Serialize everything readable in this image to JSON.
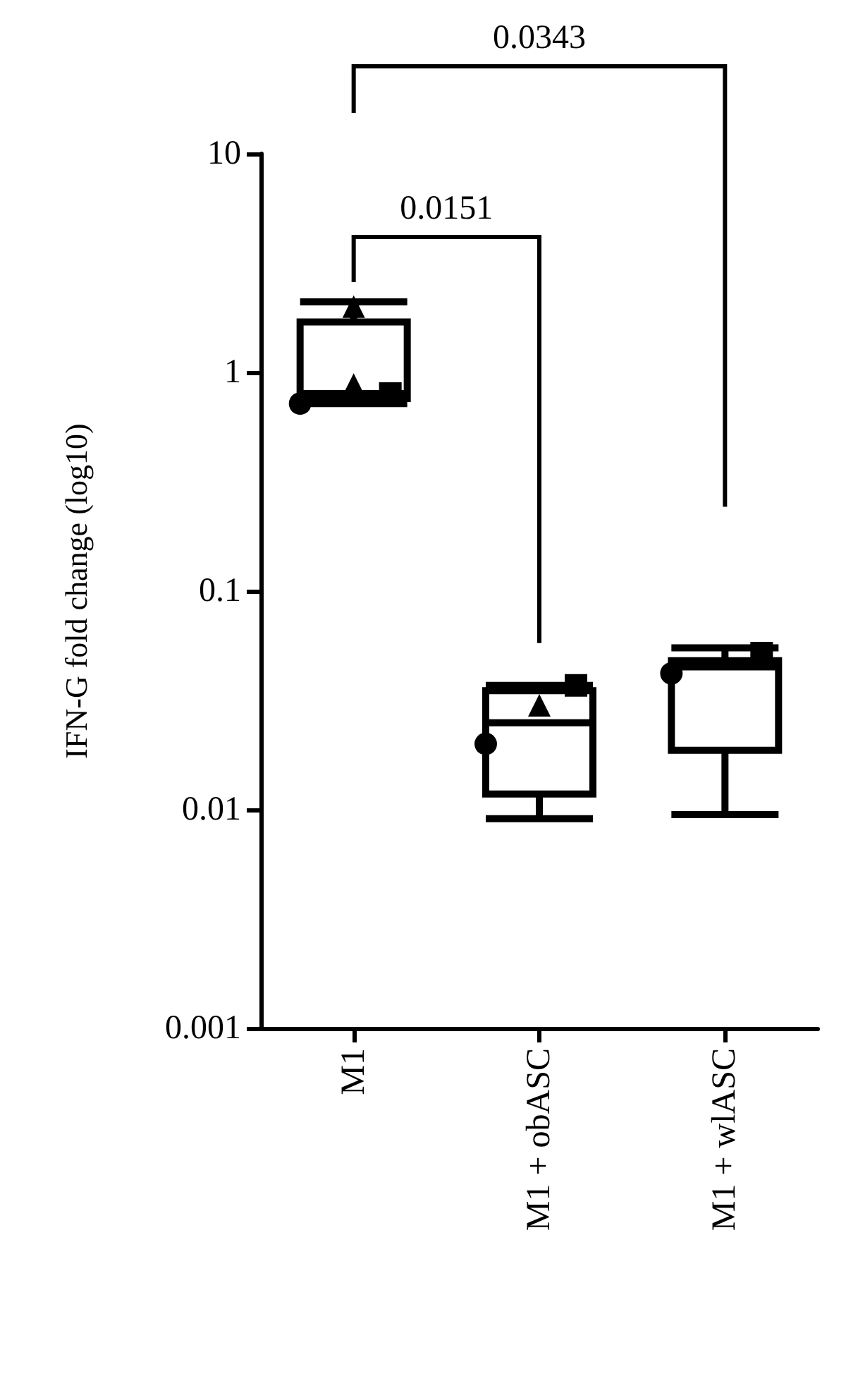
{
  "chart_data": {
    "type": "box",
    "ylabel": "IFN-G fold change (log10)",
    "categories": [
      "M1",
      "M1 + obASC",
      "M1 + wlASC"
    ],
    "boxes": [
      {
        "low": 0.72,
        "q1": 0.76,
        "median": 0.8,
        "q3": 1.7,
        "high": 2.1
      },
      {
        "low": 0.0091,
        "q1": 0.0118,
        "median": 0.025,
        "q3": 0.035,
        "high": 0.037
      },
      {
        "low": 0.0095,
        "q1": 0.0187,
        "median": 0.045,
        "q3": 0.048,
        "high": 0.055
      }
    ],
    "color": "#000000",
    "log": true,
    "ylim": [
      0.001,
      10
    ],
    "yticks": [
      0.001,
      0.01,
      0.1,
      1,
      10
    ],
    "grid": false,
    "series": [
      {
        "type": "scatter",
        "marker": "circle",
        "color": "#000000",
        "x": [
          "M1",
          "M1 + obASC",
          "M1 + wlASC"
        ],
        "values": [
          0.72,
          0.02,
          0.042
        ]
      },
      {
        "type": "scatter",
        "marker": "triangle",
        "color": "#000000",
        "x": [
          "M1",
          "M1",
          "M1 + obASC"
        ],
        "values": [
          2.0,
          0.88,
          0.03
        ]
      },
      {
        "type": "scatter",
        "marker": "square",
        "color": "#000000",
        "x": [
          "M1",
          "M1 + obASC",
          "M1 + wlASC"
        ],
        "values": [
          0.8,
          0.037,
          0.052
        ]
      }
    ],
    "annotations": [
      "0.0151",
      "0.0343"
    ]
  }
}
